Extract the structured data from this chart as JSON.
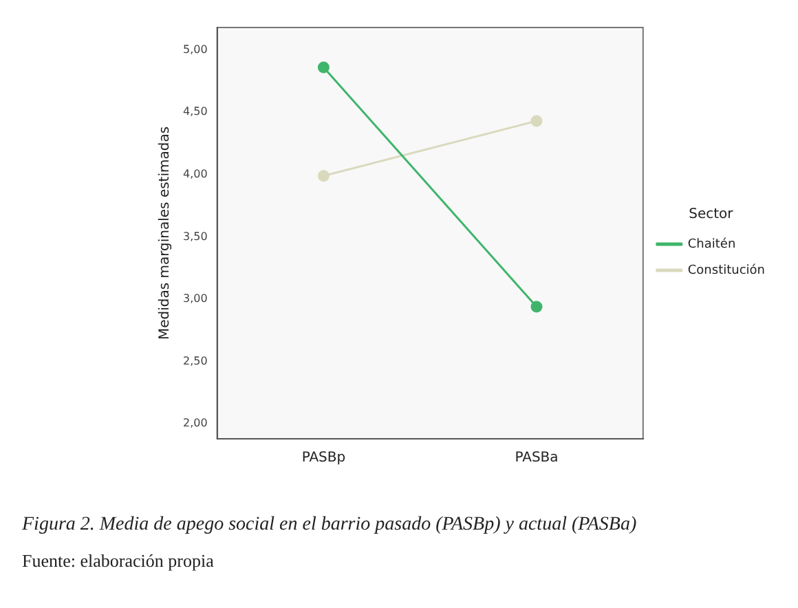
{
  "chart_data": {
    "type": "line",
    "ylabel": "Medidas marginales estimadas",
    "legend_title": "Sector",
    "categories": [
      "PASBp",
      "PASBa"
    ],
    "series": [
      {
        "name": "Chaitén",
        "color": "#3fb56b",
        "values": [
          4.86,
          2.94
        ]
      },
      {
        "name": "Constitución",
        "color": "#d9d9bd",
        "values": [
          3.99,
          4.43
        ]
      }
    ],
    "ylim": [
      1.88,
      5.18
    ],
    "yticks": [
      {
        "value": 2,
        "label": "2,00"
      },
      {
        "value": 2.5,
        "label": "2,50"
      },
      {
        "value": 3,
        "label": "3,00"
      },
      {
        "value": 3.5,
        "label": "3,50"
      },
      {
        "value": 4,
        "label": "4,00"
      },
      {
        "value": 4.5,
        "label": "4,50"
      },
      {
        "value": 5,
        "label": "5,00"
      }
    ],
    "grid": false,
    "legend": "right",
    "marker": "circle",
    "line_style": "solid",
    "annotations": [
      "Figura 2. Media de apego social en el barrio pasado (PASBp) y actual (PASBa)",
      "Fuente: elaboración propia"
    ]
  }
}
